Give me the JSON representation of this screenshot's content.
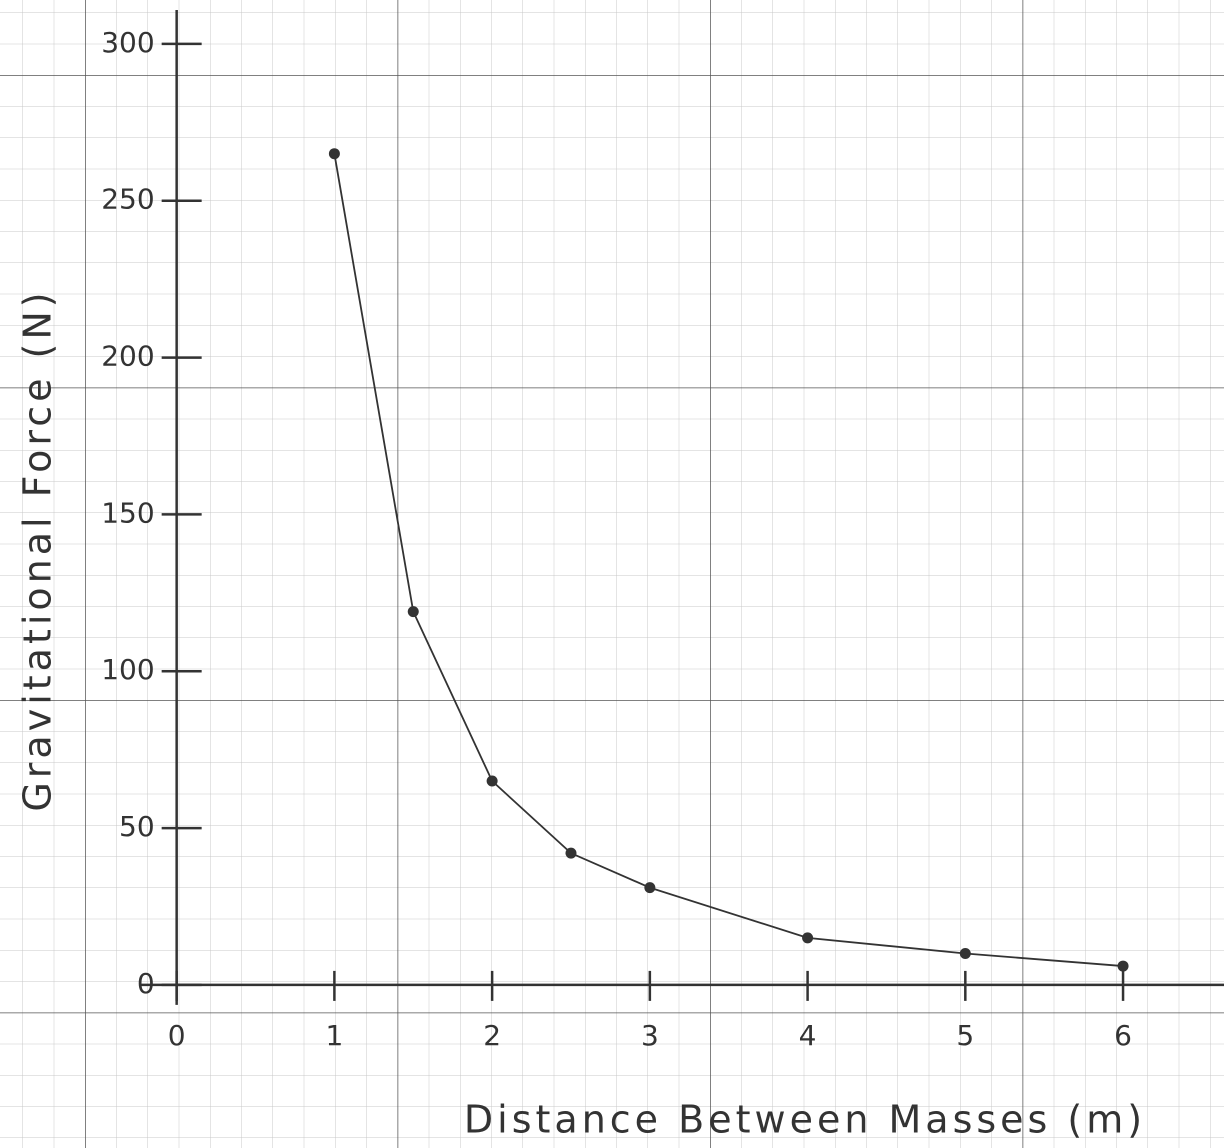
{
  "chart_data": {
    "type": "line",
    "x_label": "Distance Between Masses (m)",
    "y_label": "Gravitational Force (N)",
    "x": [
      1,
      1.5,
      2,
      2.5,
      3,
      4,
      5,
      6
    ],
    "values": [
      265,
      119,
      65,
      42,
      31,
      15,
      10,
      6
    ],
    "color": "#333333",
    "xlim": [
      -1.12,
      6.64
    ],
    "ylim": [
      -52,
      314
    ],
    "xticks": [
      0,
      1,
      2,
      3,
      4,
      5,
      6
    ],
    "yticks": [
      0,
      50,
      100,
      150,
      200,
      250,
      300
    ]
  }
}
